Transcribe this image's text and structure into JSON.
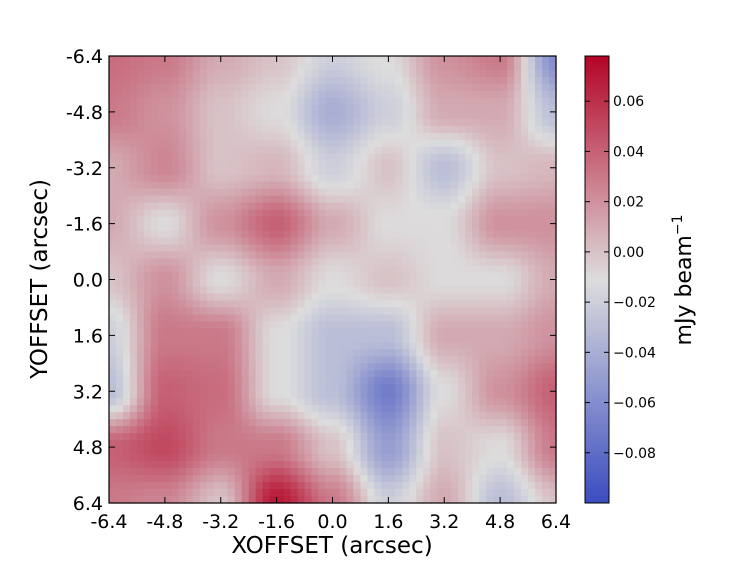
{
  "chart_data": {
    "type": "heatmap",
    "xlabel": "XOFFSET (arcsec)",
    "ylabel": "YOFFSET (arcsec)",
    "xlim": [
      -6.4,
      6.4
    ],
    "ylim": [
      -6.4,
      6.4
    ],
    "y_axis_inverted": true,
    "x_ticks": [
      "-6.4",
      "-4.8",
      "-3.2",
      "-1.6",
      "0.0",
      "1.6",
      "3.2",
      "4.8",
      "6.4"
    ],
    "y_ticks": [
      "-6.4",
      "-4.8",
      "-3.2",
      "-1.6",
      "0.0",
      "1.6",
      "3.2",
      "4.8",
      "6.4"
    ],
    "colormap": "coolwarm",
    "colors": {
      "low": "#3b4cc0",
      "mid": "#dddddd",
      "high": "#b40426"
    },
    "colorbar": {
      "label": "mJy beam",
      "label_superscript": "−1",
      "vmin": -0.1,
      "vmax": 0.078,
      "ticks": [
        0.06,
        0.04,
        0.02,
        0.0,
        -0.02,
        -0.04,
        -0.06,
        -0.08
      ],
      "tick_labels": [
        "0.06",
        "0.04",
        "0.02",
        "0.00",
        "−0.02",
        "−0.04",
        "−0.06",
        "−0.08"
      ]
    },
    "grid_x": [
      -6.4,
      -4.8,
      -3.2,
      -1.6,
      0.0,
      1.6,
      3.2,
      4.8,
      6.4
    ],
    "grid_y": [
      -6.4,
      -4.8,
      -3.2,
      -1.6,
      0.0,
      1.6,
      3.2,
      4.8,
      6.4
    ],
    "values": [
      [
        0.035,
        0.03,
        0.01,
        0.0,
        -0.02,
        -0.01,
        0.02,
        0.03,
        -0.06
      ],
      [
        0.03,
        0.02,
        0.0,
        -0.01,
        -0.04,
        -0.02,
        0.01,
        0.01,
        -0.03
      ],
      [
        0.01,
        0.025,
        0.0,
        0.005,
        -0.02,
        0.0,
        -0.03,
        0.0,
        0.005
      ],
      [
        0.01,
        -0.01,
        0.02,
        0.04,
        0.01,
        -0.01,
        -0.01,
        0.02,
        0.02
      ],
      [
        0.0,
        0.02,
        -0.01,
        0.01,
        -0.01,
        0.0,
        -0.01,
        -0.01,
        0.01
      ],
      [
        -0.02,
        0.03,
        0.03,
        -0.01,
        -0.03,
        -0.03,
        0.01,
        0.01,
        0.02
      ],
      [
        -0.03,
        0.04,
        0.035,
        -0.01,
        -0.03,
        -0.07,
        -0.01,
        0.02,
        0.04
      ],
      [
        0.04,
        0.05,
        0.03,
        0.03,
        0.0,
        -0.05,
        0.0,
        -0.01,
        0.03
      ],
      [
        0.03,
        0.025,
        0.0,
        0.07,
        0.03,
        -0.02,
        0.01,
        -0.03,
        0.0
      ]
    ]
  }
}
